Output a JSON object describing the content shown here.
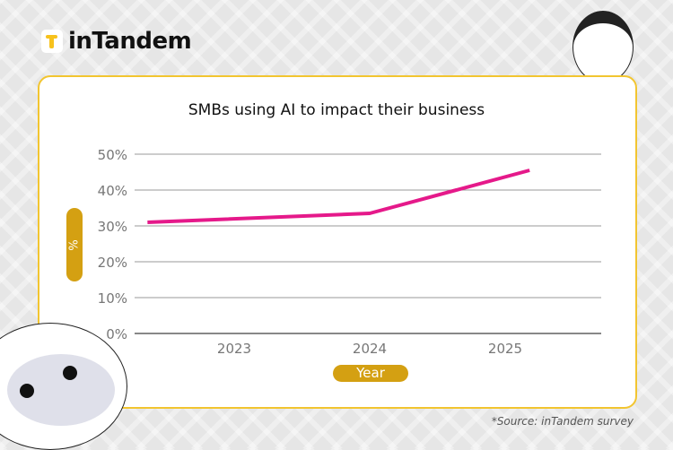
{
  "brand": {
    "name": "inTandem",
    "accent": "#f7c21c"
  },
  "source": "*Source: inTandem survey",
  "chart_data": {
    "type": "line",
    "title": "SMBs using AI to impact their business",
    "xlabel": "Year",
    "ylabel": "%",
    "categories": [
      "2023",
      "2024",
      "2025"
    ],
    "yticks": [
      "0%",
      "10%",
      "20%",
      "30%",
      "40%",
      "50%"
    ],
    "ylim": [
      0,
      50
    ],
    "grid": true,
    "series": [
      {
        "color": "#e5198a",
        "points": [
          {
            "x": 2022.36,
            "y": 31
          },
          {
            "x": 2024,
            "y": 33.5
          },
          {
            "x": 2025.18,
            "y": 45.5
          }
        ]
      }
    ],
    "label_pill_color": "#d4a012"
  }
}
